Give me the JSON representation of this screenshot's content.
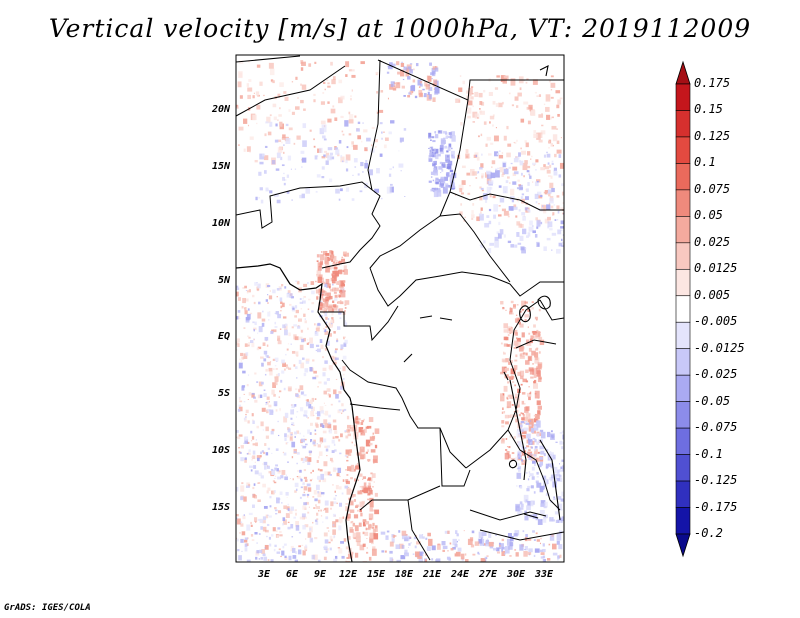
{
  "title": "Vertical velocity [m/s] at 1000hPa, VT: 2019112009",
  "credit": "GrADS: IGES/COLA",
  "map": {
    "lat_labels": [
      "20N",
      "15N",
      "10N",
      "5N",
      "EQ",
      "5S",
      "10S",
      "15S"
    ],
    "lon_labels": [
      "3E",
      "6E",
      "9E",
      "12E",
      "15E",
      "18E",
      "21E",
      "24E",
      "27E",
      "30E",
      "33E"
    ]
  },
  "colorbar": {
    "labels": [
      "0.175",
      "0.15",
      "0.125",
      "0.1",
      "0.075",
      "0.05",
      "0.025",
      "0.0125",
      "0.005",
      "-0.005",
      "-0.0125",
      "-0.025",
      "-0.05",
      "-0.075",
      "-0.1",
      "-0.125",
      "-0.175",
      "-0.2"
    ],
    "colors": [
      "#a50f15",
      "#c4161c",
      "#d6302e",
      "#e34a40",
      "#ea6a5c",
      "#ef8a7c",
      "#f4aa9e",
      "#f8c8c0",
      "#fce6e2",
      "#ffffff",
      "#e4e4fc",
      "#c8c8f8",
      "#aaaaf2",
      "#8c8cea",
      "#6e6ee0",
      "#5050d2",
      "#3030bf",
      "#1414a8",
      "#0a0a8c"
    ]
  }
}
